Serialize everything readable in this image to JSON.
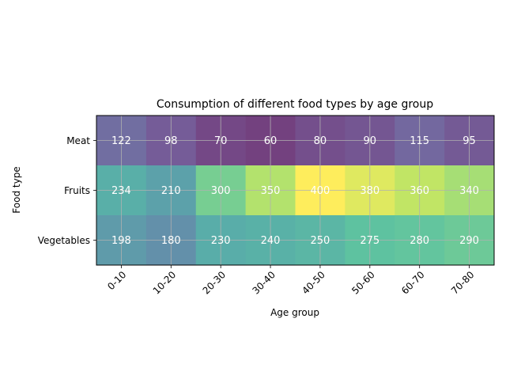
{
  "chart_data": {
    "type": "heatmap",
    "title": "Consumption of different food types by age group",
    "xlabel": "Age group",
    "ylabel": "Food type",
    "x_categories": [
      "0-10",
      "10-20",
      "20-30",
      "30-40",
      "40-50",
      "50-60",
      "60-70",
      "70-80"
    ],
    "y_categories": [
      "Meat",
      "Fruits",
      "Vegetables"
    ],
    "values": [
      [
        122,
        98,
        70,
        60,
        80,
        90,
        115,
        95
      ],
      [
        234,
        210,
        300,
        350,
        400,
        380,
        360,
        340
      ],
      [
        198,
        180,
        230,
        240,
        250,
        275,
        280,
        290
      ]
    ],
    "colormap": "viridis",
    "value_range": [
      60,
      400
    ],
    "grid": true,
    "xtick_rotation_deg": 45,
    "annotation_color": "#ffffff"
  }
}
